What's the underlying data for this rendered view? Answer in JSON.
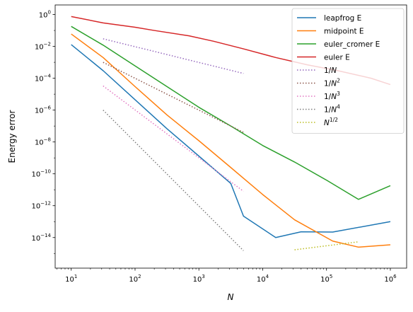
{
  "chart_data": {
    "type": "line",
    "title": "",
    "xlabel": "N",
    "ylabel": "Energy error",
    "xscale": "log",
    "yscale": "log",
    "xlim": [
      5.6,
      1800000.0
    ],
    "ylim": [
      1.2e-16,
      4.0
    ],
    "x_ticks": [
      {
        "value": 10,
        "base": "10",
        "exp": "1"
      },
      {
        "value": 100,
        "base": "10",
        "exp": "2"
      },
      {
        "value": 1000,
        "base": "10",
        "exp": "3"
      },
      {
        "value": 10000,
        "base": "10",
        "exp": "4"
      },
      {
        "value": 100000,
        "base": "10",
        "exp": "5"
      },
      {
        "value": 1000000,
        "base": "10",
        "exp": "6"
      }
    ],
    "y_ticks": [
      {
        "value": 1,
        "base": "10",
        "exp": "0"
      },
      {
        "value": 0.01,
        "base": "10",
        "exp": "−2"
      },
      {
        "value": 0.0001,
        "base": "10",
        "exp": "−4"
      },
      {
        "value": 1e-06,
        "base": "10",
        "exp": "−6"
      },
      {
        "value": 1e-08,
        "base": "10",
        "exp": "−8"
      },
      {
        "value": 1e-10,
        "base": "10",
        "exp": "−10"
      },
      {
        "value": 1e-12,
        "base": "10",
        "exp": "−12"
      },
      {
        "value": 1e-14,
        "base": "10",
        "exp": "−14"
      }
    ],
    "legend_position": "top-right",
    "series": [
      {
        "name": "leapfrog E",
        "color": "#1f77b4",
        "style": "solid",
        "x": [
          10,
          31.6,
          100,
          316,
          1000,
          3160,
          5000,
          16000,
          40000,
          125000,
          1000000
        ],
        "y": [
          0.013,
          0.0003,
          4.5e-06,
          6.8e-08,
          1.3e-09,
          2.5e-11,
          2.2e-13,
          1e-14,
          2.3e-14,
          2.2e-14,
          1e-13
        ]
      },
      {
        "name": "midpoint E",
        "color": "#ff7f0e",
        "style": "solid",
        "x": [
          10,
          31.6,
          100,
          316,
          1000,
          3160,
          10000,
          31600,
          125000,
          316000,
          1000000
        ],
        "y": [
          0.06,
          0.002,
          3e-05,
          5e-07,
          1.2e-08,
          2.5e-10,
          5e-12,
          1.3e-13,
          6e-15,
          2.5e-15,
          3.5e-15
        ]
      },
      {
        "name": "euler_cromer E",
        "color": "#2ca02c",
        "style": "solid",
        "x": [
          10,
          31.6,
          100,
          316,
          1000,
          3160,
          10000,
          31600,
          100000,
          316000,
          1000000
        ],
        "y": [
          0.18,
          0.012,
          0.0006,
          3e-05,
          1.5e-06,
          1e-07,
          6e-09,
          5.5e-10,
          4e-11,
          2.5e-12,
          1.8e-11
        ]
      },
      {
        "name": "euler E",
        "color": "#d62728",
        "style": "solid",
        "x": [
          10,
          31.6,
          100,
          200,
          700,
          1700,
          5000,
          16000,
          50000,
          150000,
          500000,
          1000000
        ],
        "y": [
          0.75,
          0.3,
          0.16,
          0.1,
          0.046,
          0.021,
          0.007,
          0.002,
          0.0007,
          0.0003,
          0.0001,
          4e-05
        ]
      },
      {
        "name": "1/N",
        "color": "#9467bd",
        "style": "dotted",
        "x": [
          31.6,
          5000
        ],
        "y": [
          0.03,
          0.0002
        ]
      },
      {
        "name": "1/N^2",
        "color": "#8c564b",
        "style": "dotted",
        "x": [
          31.6,
          5000
        ],
        "y": [
          0.001,
          4e-08
        ]
      },
      {
        "name": "1/N^3",
        "color": "#e377c2",
        "style": "dotted",
        "x": [
          31.6,
          5000
        ],
        "y": [
          3.3e-05,
          8e-12
        ]
      },
      {
        "name": "1/N^4",
        "color": "#7f7f7f",
        "style": "dotted",
        "x": [
          31.6,
          5000
        ],
        "y": [
          1e-06,
          1.5e-15
        ]
      },
      {
        "name": "N^1/2",
        "color": "#bcbd22",
        "style": "dotted",
        "x": [
          31600,
          316000
        ],
        "y": [
          1.7e-15,
          5.4e-15
        ]
      }
    ],
    "legend": [
      {
        "label": "leapfrog E",
        "color": "#1f77b4",
        "style": "solid"
      },
      {
        "label": "midpoint E",
        "color": "#ff7f0e",
        "style": "solid"
      },
      {
        "label": "euler_cromer E",
        "color": "#2ca02c",
        "style": "solid"
      },
      {
        "label": "euler E",
        "color": "#d62728",
        "style": "solid"
      },
      {
        "label": "1/N",
        "color": "#9467bd",
        "style": "dotted",
        "base": "1/N",
        "exp": ""
      },
      {
        "label": "1/N^2",
        "color": "#8c564b",
        "style": "dotted",
        "base": "1/N",
        "exp": "2"
      },
      {
        "label": "1/N^3",
        "color": "#e377c2",
        "style": "dotted",
        "base": "1/N",
        "exp": "3"
      },
      {
        "label": "1/N^4",
        "color": "#7f7f7f",
        "style": "dotted",
        "base": "1/N",
        "exp": "4"
      },
      {
        "label": "N^1/2",
        "color": "#bcbd22",
        "style": "dotted",
        "base": "N",
        "exp": "1/2"
      }
    ]
  }
}
